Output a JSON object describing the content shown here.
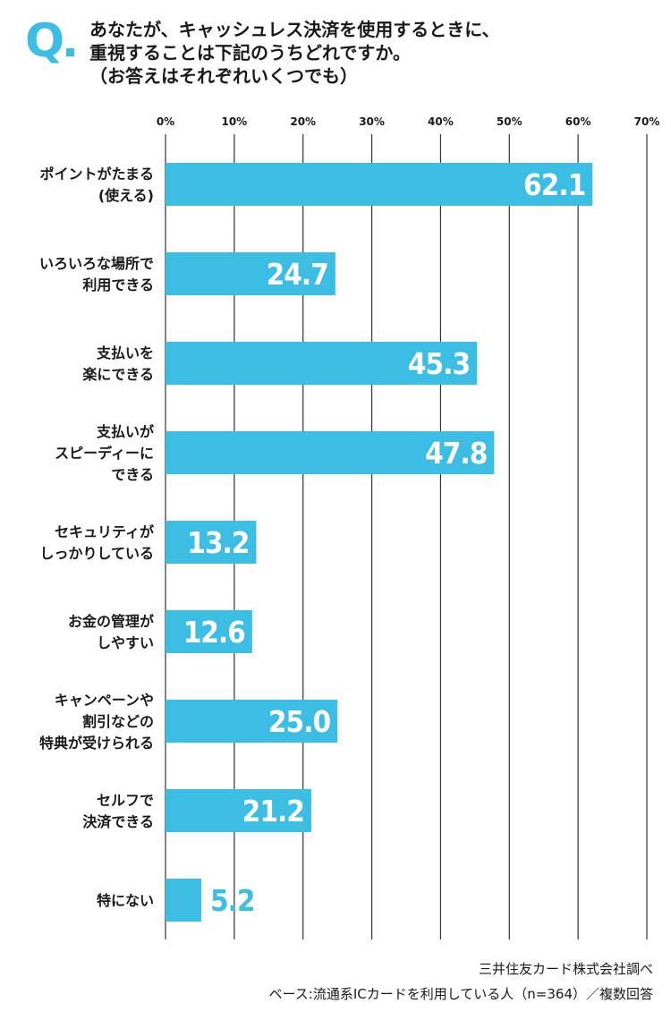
{
  "question": {
    "mark": "Q",
    "lines": [
      "あなたが、キャッシュレス決済を使用するときに、",
      "重視することは下記のうちどれですか。",
      "（お答えはそれぞれいくつでも）"
    ]
  },
  "chart_data": {
    "type": "bar",
    "orientation": "horizontal",
    "categories": [
      [
        "ポイントがたまる",
        "(使える)"
      ],
      [
        "いろいろな場所で",
        "利用できる"
      ],
      [
        "支払いを",
        "楽にできる"
      ],
      [
        "支払いが",
        "スピーディーに",
        "できる"
      ],
      [
        "セキュリティが",
        "しっかりしている"
      ],
      [
        "お金の管理が",
        "しやすい"
      ],
      [
        "キャンペーンや",
        "割引などの",
        "特典が受けられる"
      ],
      [
        "セルフで",
        "決済できる"
      ],
      [
        "特にない"
      ]
    ],
    "values": [
      62.1,
      24.7,
      45.3,
      47.8,
      13.2,
      12.6,
      25.0,
      21.2,
      5.2
    ],
    "value_labels": [
      "62.1",
      "24.7",
      "45.3",
      "47.8",
      "13.2",
      "12.6",
      "25.0",
      "21.2",
      "5.2"
    ],
    "xlim": [
      0,
      70
    ],
    "ticks": [
      "0%",
      "10%",
      "20%",
      "30%",
      "40%",
      "50%",
      "60%",
      "70%"
    ],
    "grid": true,
    "colors": {
      "bar": "#3bbde4",
      "grid": "#333333",
      "label_inside": "#ffffff",
      "label_outside": "#3bbde4"
    }
  },
  "footer": {
    "source": "三井住友カード株式会社調べ",
    "base": "ベース:流通系ICカードを利用している人（n=364）／複数回答"
  }
}
